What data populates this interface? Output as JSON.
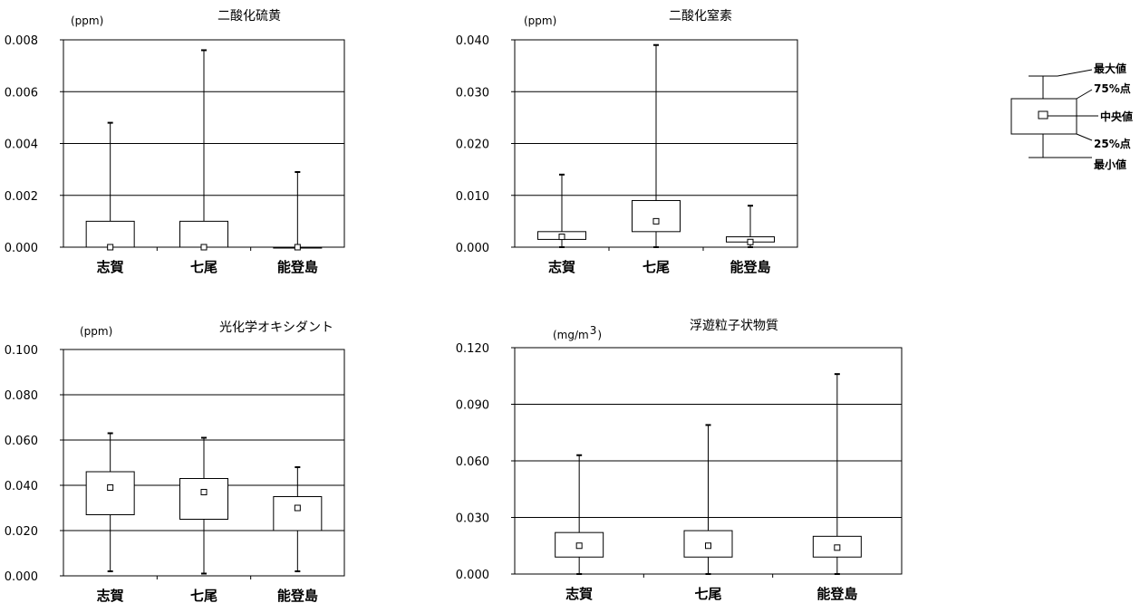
{
  "chart_data": [
    {
      "type": "box",
      "title": "二酸化硫黄",
      "unit": "(ppm)",
      "categories": [
        "志賀",
        "七尾",
        "能登島"
      ],
      "ylim": [
        0,
        0.008
      ],
      "yticks": [
        "0.000",
        "0.002",
        "0.004",
        "0.006",
        "0.008"
      ],
      "grid": true,
      "boxes": [
        {
          "min": 0.0,
          "q1": 0.0,
          "median": 0.0,
          "q3": 0.001,
          "max": 0.0048
        },
        {
          "min": 0.0,
          "q1": 0.0,
          "median": 0.0,
          "q3": 0.001,
          "max": 0.0076
        },
        {
          "min": 0.0,
          "q1": 0.0,
          "median": 0.0,
          "q3": 0.0,
          "max": 0.0029
        }
      ]
    },
    {
      "type": "box",
      "title": "二酸化窒素",
      "unit": "(ppm)",
      "categories": [
        "志賀",
        "七尾",
        "能登島"
      ],
      "ylim": [
        0,
        0.04
      ],
      "yticks": [
        "0.000",
        "0.010",
        "0.020",
        "0.030",
        "0.040"
      ],
      "grid": true,
      "boxes": [
        {
          "min": 0.0,
          "q1": 0.0015,
          "median": 0.002,
          "q3": 0.003,
          "max": 0.014
        },
        {
          "min": 0.0,
          "q1": 0.003,
          "median": 0.005,
          "q3": 0.009,
          "max": 0.039
        },
        {
          "min": 0.0,
          "q1": 0.001,
          "median": 0.001,
          "q3": 0.002,
          "max": 0.008
        }
      ]
    },
    {
      "type": "box",
      "title": "光化学オキシダント",
      "unit": "(ppm)",
      "categories": [
        "志賀",
        "七尾",
        "能登島"
      ],
      "ylim": [
        0,
        0.1
      ],
      "yticks": [
        "0.000",
        "0.020",
        "0.040",
        "0.060",
        "0.080",
        "0.100"
      ],
      "grid": true,
      "boxes": [
        {
          "min": 0.002,
          "q1": 0.027,
          "median": 0.039,
          "q3": 0.046,
          "max": 0.063
        },
        {
          "min": 0.001,
          "q1": 0.025,
          "median": 0.037,
          "q3": 0.043,
          "max": 0.061
        },
        {
          "min": 0.002,
          "q1": 0.02,
          "median": 0.03,
          "q3": 0.035,
          "max": 0.048
        }
      ]
    },
    {
      "type": "box",
      "title": "浮遊粒子状物質",
      "unit": "(mg/m",
      "unit_sup": "3",
      "unit_end": ")",
      "categories": [
        "志賀",
        "七尾",
        "能登島"
      ],
      "ylim": [
        0,
        0.12
      ],
      "yticks": [
        "0.000",
        "0.030",
        "0.060",
        "0.090",
        "0.120"
      ],
      "grid": true,
      "boxes": [
        {
          "min": 0.0,
          "q1": 0.009,
          "median": 0.015,
          "q3": 0.022,
          "max": 0.063
        },
        {
          "min": 0.0,
          "q1": 0.009,
          "median": 0.015,
          "q3": 0.023,
          "max": 0.079
        },
        {
          "min": 0.0,
          "q1": 0.009,
          "median": 0.014,
          "q3": 0.02,
          "max": 0.106
        }
      ]
    }
  ],
  "legend": {
    "max": "最大値",
    "p75": "75%点",
    "median": "中央値",
    "p25": "25%点",
    "min": "最小値"
  }
}
